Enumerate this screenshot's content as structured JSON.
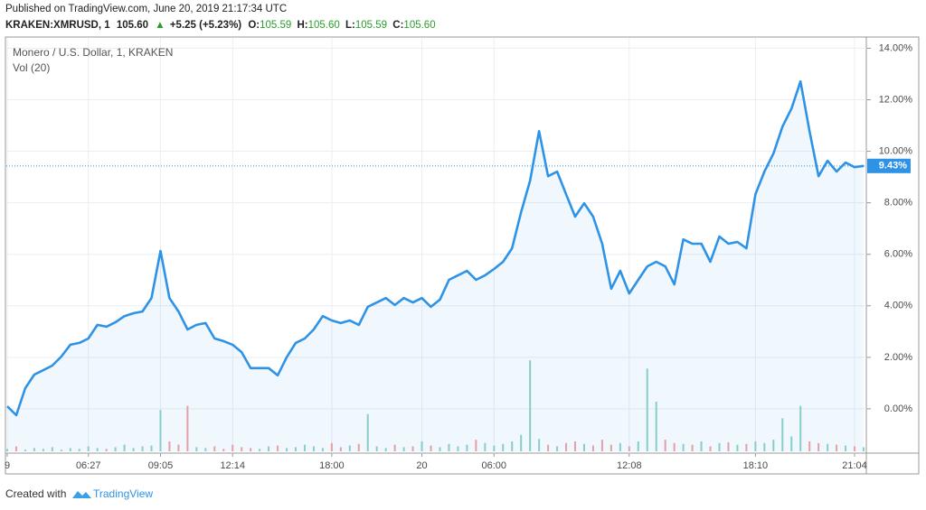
{
  "header": {
    "published": "Published on TradingView.com, June 20, 2019 21:17:34 UTC",
    "symbol": "KRAKEN:XMRUSD, 1",
    "price": "105.60",
    "arrow": "▲",
    "change": "+5.25 (+5.23%)",
    "ohlc": [
      {
        "label": "O:",
        "value": "105.59"
      },
      {
        "label": "H:",
        "value": "105.60"
      },
      {
        "label": "L:",
        "value": "105.59"
      },
      {
        "label": "C:",
        "value": "105.60"
      }
    ]
  },
  "chart_data": {
    "type": "line",
    "title": "Monero / U.S. Dollar, 1, KRAKEN",
    "color": "#2e93e6",
    "categories": [
      "9",
      null,
      null,
      null,
      null,
      null,
      null,
      null,
      null,
      "06:27",
      null,
      null,
      null,
      null,
      null,
      null,
      null,
      "09:05",
      null,
      null,
      null,
      null,
      null,
      null,
      null,
      "12:14",
      null,
      null,
      null,
      null,
      null,
      null,
      null,
      null,
      null,
      null,
      "18:00",
      null,
      null,
      null,
      null,
      null,
      null,
      null,
      null,
      null,
      "20",
      null,
      null,
      null,
      null,
      null,
      null,
      null,
      "06:00",
      null,
      null,
      null,
      null,
      null,
      null,
      null,
      null,
      null,
      null,
      null,
      null,
      null,
      null,
      "12:08",
      null,
      null,
      null,
      null,
      null,
      null,
      null,
      null,
      null,
      null,
      null,
      null,
      null,
      "18:10",
      null,
      null,
      null,
      null,
      null,
      null,
      null,
      null,
      null,
      null,
      "21:04",
      null
    ],
    "values": [
      0.1,
      -0.25,
      0.8,
      1.33,
      1.5,
      1.68,
      2.03,
      2.49,
      2.56,
      2.73,
      3.26,
      3.19,
      3.36,
      3.6,
      3.71,
      3.78,
      4.3,
      6.13,
      4.3,
      3.78,
      3.08,
      3.26,
      3.33,
      2.73,
      2.63,
      2.49,
      2.2,
      1.58,
      1.58,
      1.58,
      1.3,
      2.0,
      2.56,
      2.73,
      3.08,
      3.6,
      3.43,
      3.33,
      3.43,
      3.26,
      3.96,
      4.13,
      4.3,
      4.03,
      4.3,
      4.13,
      4.3,
      3.96,
      4.24,
      5.01,
      5.18,
      5.36,
      5.01,
      5.18,
      5.43,
      5.71,
      6.23,
      7.63,
      8.86,
      10.78,
      9.03,
      9.21,
      8.33,
      7.46,
      7.98,
      7.46,
      6.41,
      4.66,
      5.36,
      4.48,
      5.01,
      5.53,
      5.71,
      5.53,
      4.83,
      6.58,
      6.41,
      6.41,
      5.71,
      6.69,
      6.41,
      6.48,
      6.23,
      8.33,
      9.21,
      9.91,
      10.96,
      11.66,
      12.71,
      10.78,
      9.03,
      9.63,
      9.21,
      9.56,
      9.38,
      9.43
    ],
    "value_labels": [
      null,
      null,
      null,
      null,
      null,
      null,
      null,
      null,
      null,
      null,
      null,
      null,
      null,
      null,
      null,
      null,
      null,
      null,
      null,
      null,
      null,
      null,
      null,
      null,
      null,
      null,
      null,
      null,
      null,
      null,
      null,
      null,
      null,
      null,
      null,
      null,
      null,
      null,
      null,
      null,
      null,
      null,
      null,
      null,
      null,
      null,
      null,
      null,
      null,
      null,
      null,
      null,
      null,
      null,
      null,
      null,
      null,
      null,
      null,
      null,
      null,
      null,
      null,
      null,
      null,
      null,
      null,
      null,
      null,
      null,
      null,
      null,
      null,
      null,
      null,
      null,
      null,
      null,
      null,
      null,
      null,
      null,
      null,
      null,
      null,
      null,
      null,
      null,
      null,
      null,
      null,
      null,
      null,
      null,
      null,
      "9.43%"
    ],
    "ylim": [
      -1.65,
      14.4
    ],
    "yticks": [
      {
        "value": 0,
        "label": "0.00%"
      },
      {
        "value": 2,
        "label": "2.00%"
      },
      {
        "value": 4,
        "label": "4.00%"
      },
      {
        "value": 6,
        "label": "6.00%"
      },
      {
        "value": 8,
        "label": "8.00%"
      },
      {
        "value": 10,
        "label": "10.00%"
      },
      {
        "value": 12,
        "label": "12.00%"
      },
      {
        "value": 14,
        "label": "14.00%"
      }
    ],
    "grid": true,
    "volume": {
      "label": "Vol (20)",
      "up_color": "#8fd3c8",
      "down_color": "#f2a3a3",
      "ylim": [
        0,
        120
      ],
      "values": [
        3,
        6,
        2,
        4,
        3,
        5,
        2,
        4,
        3,
        6,
        4,
        3,
        5,
        8,
        4,
        6,
        7,
        50,
        12,
        8,
        55,
        5,
        4,
        6,
        3,
        8,
        5,
        4,
        3,
        6,
        7,
        4,
        5,
        8,
        6,
        4,
        10,
        5,
        7,
        9,
        45,
        6,
        4,
        8,
        5,
        6,
        12,
        7,
        5,
        9,
        6,
        8,
        14,
        10,
        7,
        9,
        12,
        20,
        110,
        15,
        8,
        6,
        10,
        12,
        9,
        7,
        14,
        8,
        10,
        6,
        12,
        100,
        60,
        14,
        10,
        9,
        8,
        12,
        6,
        10,
        11,
        8,
        9,
        12,
        10,
        14,
        40,
        18,
        55,
        12,
        10,
        9,
        8,
        7,
        6,
        5
      ]
    }
  },
  "footer": {
    "created": "Created with",
    "brand": "TradingView"
  }
}
